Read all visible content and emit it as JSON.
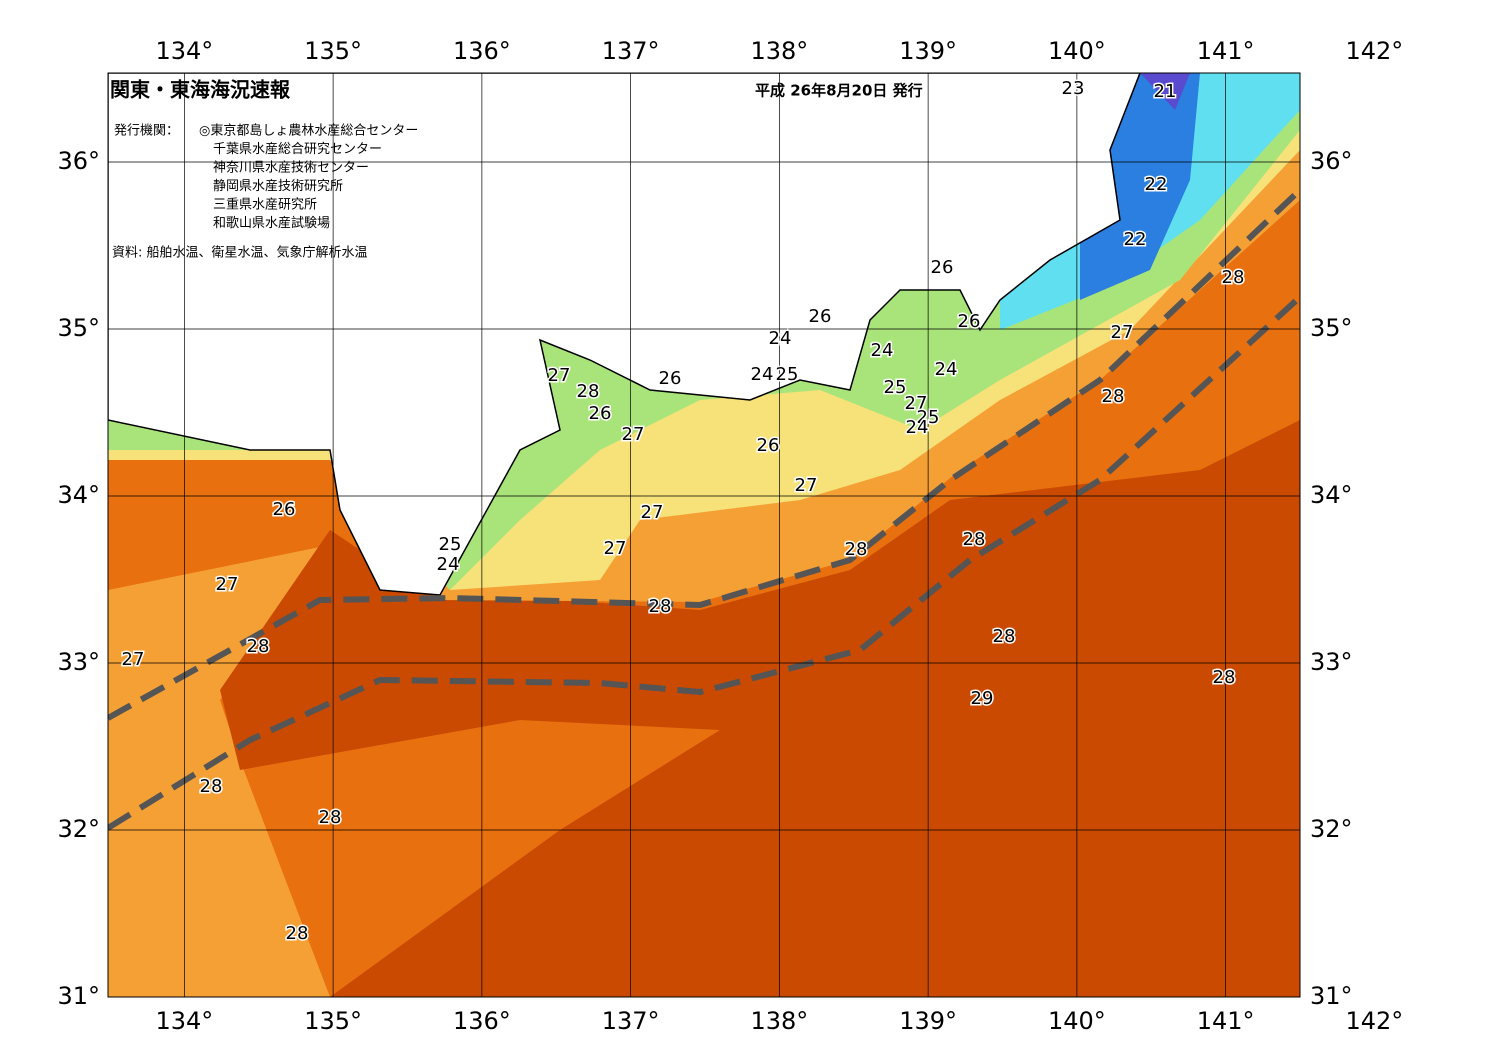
{
  "header": {
    "title": "関東・東海海況速報",
    "date": "平成 26年8月20日 発行",
    "issuer_label": "発行機関：",
    "issuers": [
      "◎東京都島しょ農林水産総合センター",
      "千葉県水産総合研究センター",
      "神奈川県水産技術センター",
      "静岡県水産技術研究所",
      "三重県水産研究所",
      "和歌山県水産試験場"
    ],
    "source": "資料: 船舶水温、衛星水温、気象庁解析水温"
  },
  "map": {
    "lon_ticks": [
      {
        "value": 134,
        "label": "134°"
      },
      {
        "value": 135,
        "label": "135°"
      },
      {
        "value": 136,
        "label": "136°"
      },
      {
        "value": 137,
        "label": "137°"
      },
      {
        "value": 138,
        "label": "138°"
      },
      {
        "value": 139,
        "label": "139°"
      },
      {
        "value": 140,
        "label": "140°"
      },
      {
        "value": 141,
        "label": "141°"
      },
      {
        "value": 142,
        "label": "142°"
      }
    ],
    "lat_ticks": [
      {
        "value": 36,
        "label": "36°"
      },
      {
        "value": 35,
        "label": "35°"
      },
      {
        "value": 34,
        "label": "34°"
      },
      {
        "value": 33,
        "label": "33°"
      },
      {
        "value": 32,
        "label": "32°"
      },
      {
        "value": 31,
        "label": "31°"
      }
    ],
    "contour_labels": [
      "23",
      "21",
      "22",
      "22",
      "28",
      "26",
      "26",
      "26",
      "27",
      "24",
      "24",
      "27",
      "24",
      "24",
      "25",
      "26",
      "28",
      "25",
      "28",
      "27",
      "26",
      "25",
      "24",
      "27",
      "26",
      "27",
      "26",
      "27",
      "28",
      "28",
      "25",
      "27",
      "24",
      "27",
      "28",
      "28",
      "28",
      "27",
      "28",
      "29",
      "28",
      "28",
      "28"
    ]
  }
}
